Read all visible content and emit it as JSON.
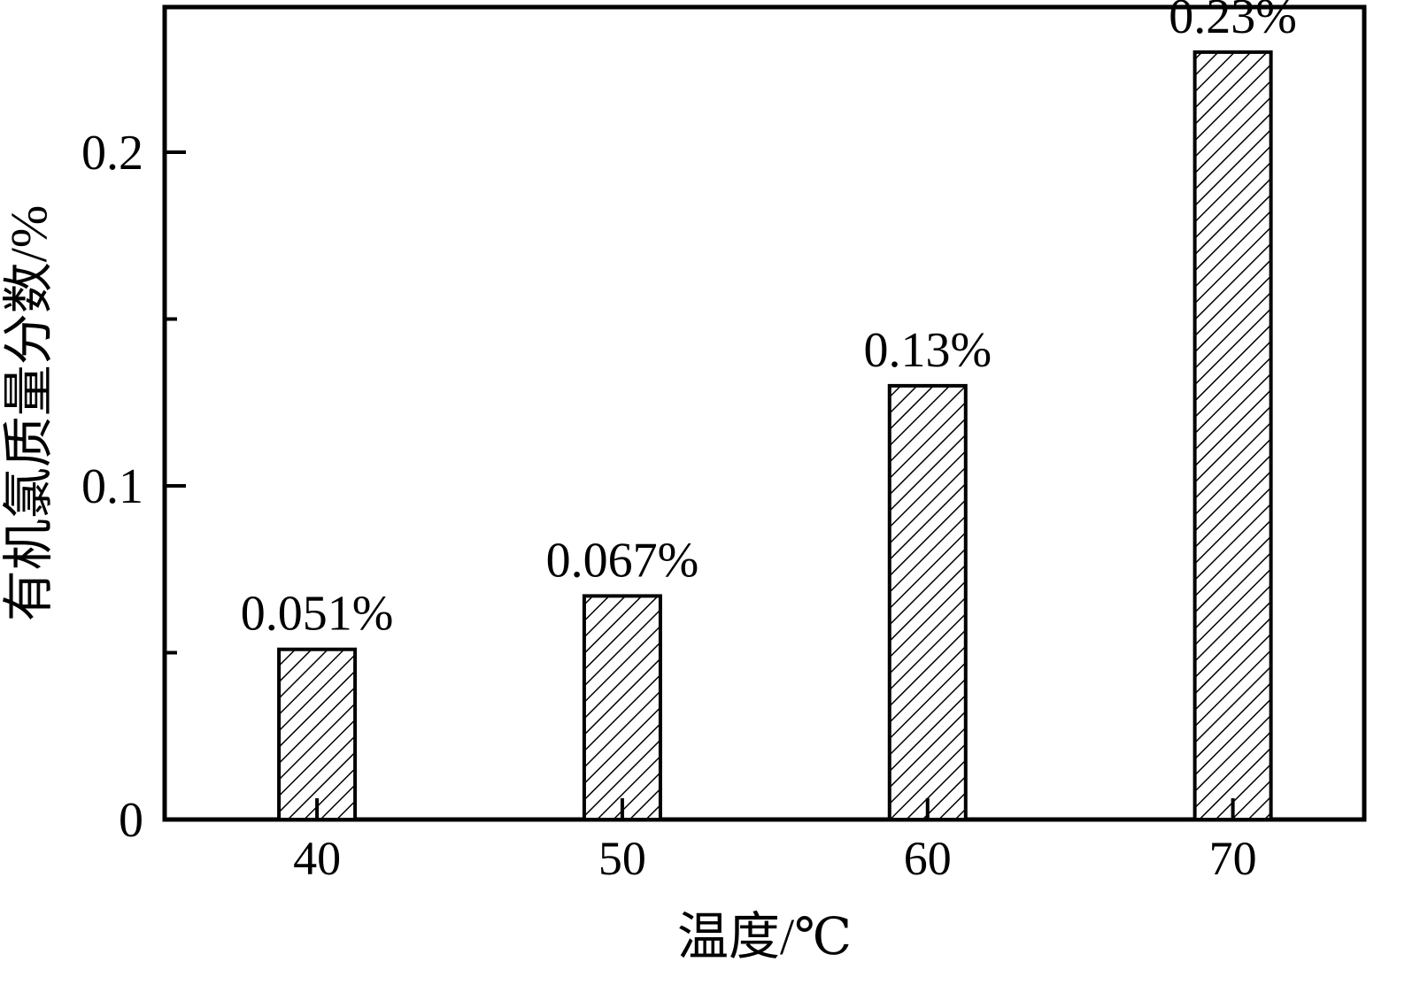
{
  "chart_data": {
    "type": "bar",
    "title": "",
    "categories": [
      "40",
      "50",
      "60",
      "70"
    ],
    "values": [
      0.051,
      0.067,
      0.13,
      0.23
    ],
    "bar_labels": [
      "0.051%",
      "0.067%",
      "0.13%",
      "0.23%"
    ],
    "xlabel": "温度/℃",
    "ylabel": "有机氯质量分数/%",
    "ylim": [
      0,
      0.2435
    ],
    "yticks": [
      0,
      0.1,
      0.2
    ],
    "ytick_labels": [
      "0",
      "0.1",
      "0.2"
    ],
    "yticks_minor": [
      0.05,
      0.15
    ],
    "grid": false,
    "legend_position": "none",
    "bar_fill_style": "diagonal-hatch",
    "line_color": "#000000",
    "background_color": "#ffffff"
  }
}
